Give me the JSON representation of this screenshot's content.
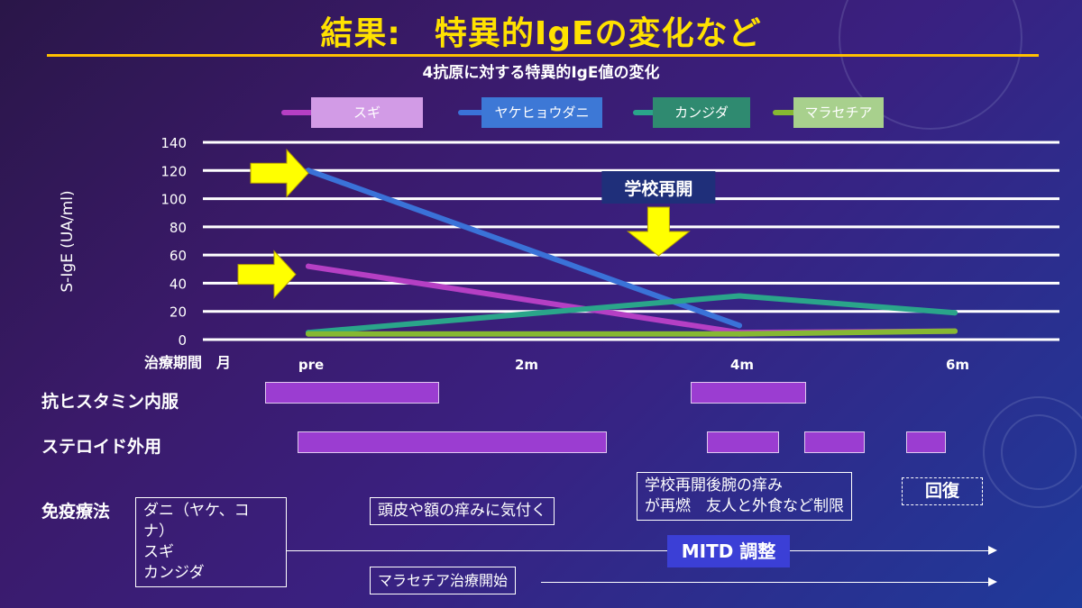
{
  "title": "結果:　特異的IgEの変化など",
  "chart_data": {
    "type": "line",
    "title": "4抗原に対する特異的IgE値の変化",
    "ylabel": "S-IgE (UA/ml)",
    "xlabel": "治療期間　月",
    "ylim": [
      0,
      140
    ],
    "yticks": [
      0,
      20,
      40,
      60,
      80,
      100,
      120,
      140
    ],
    "categories": [
      "pre",
      "2m",
      "4m",
      "6m"
    ],
    "x": [
      0,
      2,
      4,
      6
    ],
    "grid": true,
    "legend_position": "top",
    "series": [
      {
        "name": "スギ",
        "color": "#b53fc4",
        "x": [
          0,
          4,
          6
        ],
        "values": [
          52,
          5,
          6
        ]
      },
      {
        "name": "ヤケヒョウダニ",
        "color": "#3a72d8",
        "x": [
          0,
          4
        ],
        "values": [
          120,
          10
        ]
      },
      {
        "name": "カンジダ",
        "color": "#2aa58a",
        "x": [
          0,
          4,
          6
        ],
        "values": [
          5,
          31,
          19
        ]
      },
      {
        "name": "マラセチア",
        "color": "#86b832",
        "x": [
          0,
          4,
          6
        ],
        "values": [
          4,
          4,
          6
        ]
      }
    ],
    "annotations": [
      {
        "text": "学校再開",
        "x": 3.25
      }
    ]
  },
  "legend": [
    {
      "label": "スギ",
      "bg": "#d29be6",
      "line": "#b53fc4"
    },
    {
      "label": "ヤケヒョウダニ",
      "bg": "#3d78d6",
      "line": "#3a72d8"
    },
    {
      "label": "カンジダ",
      "bg": "#2f8a70",
      "line": "#2aa58a"
    },
    {
      "label": "マラセチア",
      "bg": "#a8d08d",
      "line": "#86b832"
    }
  ],
  "rows": {
    "antihistamine": "抗ヒスタミン内服",
    "steroid": "ステロイド外用",
    "immunotherapy": "免疫療法"
  },
  "treatment_bars": {
    "antihistamine": [
      [
        -0.4,
        1.2
      ],
      [
        3.55,
        4.6
      ]
    ],
    "steroid": [
      [
        -0.1,
        2.75
      ],
      [
        3.7,
        4.35
      ],
      [
        4.6,
        5.15
      ],
      [
        5.55,
        5.9
      ]
    ]
  },
  "notes": {
    "immuno_targets": "ダニ（ヤケ、コナ）\nスギ\nカンジダ",
    "scalp_itch": "頭皮や額の痒みに気付く",
    "school_reopen": "学校再開後腕の痒み\nが再燃　友人と外食など制限",
    "recovery": "回復",
    "mitd": "MITD 調整",
    "malassezia_start": "マラセチア治療開始"
  }
}
